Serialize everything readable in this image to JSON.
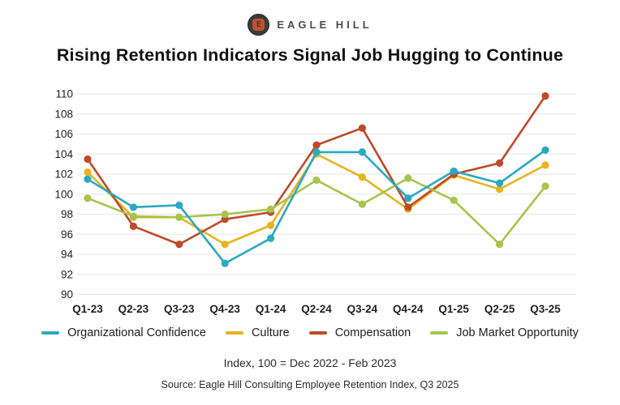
{
  "header": {
    "logo_text": "EAGLE HILL",
    "logo_glyph": "E"
  },
  "title": "Rising Retention Indicators Signal Job Hugging to Continue",
  "chart_data": {
    "type": "line",
    "title": "Rising Retention Indicators Signal Job Hugging to Continue",
    "categories": [
      "Q1-23",
      "Q2-23",
      "Q3-23",
      "Q4-23",
      "Q1-24",
      "Q2-24",
      "Q3-24",
      "Q4-24",
      "Q1-25",
      "Q2-25",
      "Q3-25"
    ],
    "series": [
      {
        "name": "Organizational Confidence",
        "color": "#2ba9c1",
        "values": [
          101.5,
          98.7,
          98.9,
          93.1,
          95.6,
          104.2,
          104.2,
          99.6,
          102.3,
          101.1,
          104.4
        ]
      },
      {
        "name": "Culture",
        "color": "#e7b41f",
        "values": [
          102.2,
          97.7,
          97.7,
          95.0,
          96.9,
          104.0,
          101.7,
          98.5,
          101.9,
          100.5,
          102.9
        ]
      },
      {
        "name": "Compensation",
        "color": "#be4a2a",
        "values": [
          103.5,
          96.8,
          95.0,
          97.5,
          98.2,
          104.9,
          106.6,
          98.7,
          102.0,
          103.1,
          109.8
        ]
      },
      {
        "name": "Job Market Opportunity",
        "color": "#a7c44c",
        "values": [
          99.6,
          97.8,
          97.7,
          98.0,
          98.5,
          101.4,
          99.0,
          101.6,
          99.4,
          95.0,
          100.8
        ]
      }
    ],
    "ylim": [
      90,
      110
    ],
    "ytick_step": 2,
    "grid": true,
    "gridline_color": "#e6e6e6",
    "axis_text_color": "#1f1f1f",
    "legend_position": "bottom",
    "xlabel": "",
    "ylabel": ""
  },
  "captions": {
    "index_note": "Index, 100 = Dec 2022 - Feb 2023",
    "source": "Source: Eagle Hill Consulting Employee Retention Index, Q3 2025"
  }
}
